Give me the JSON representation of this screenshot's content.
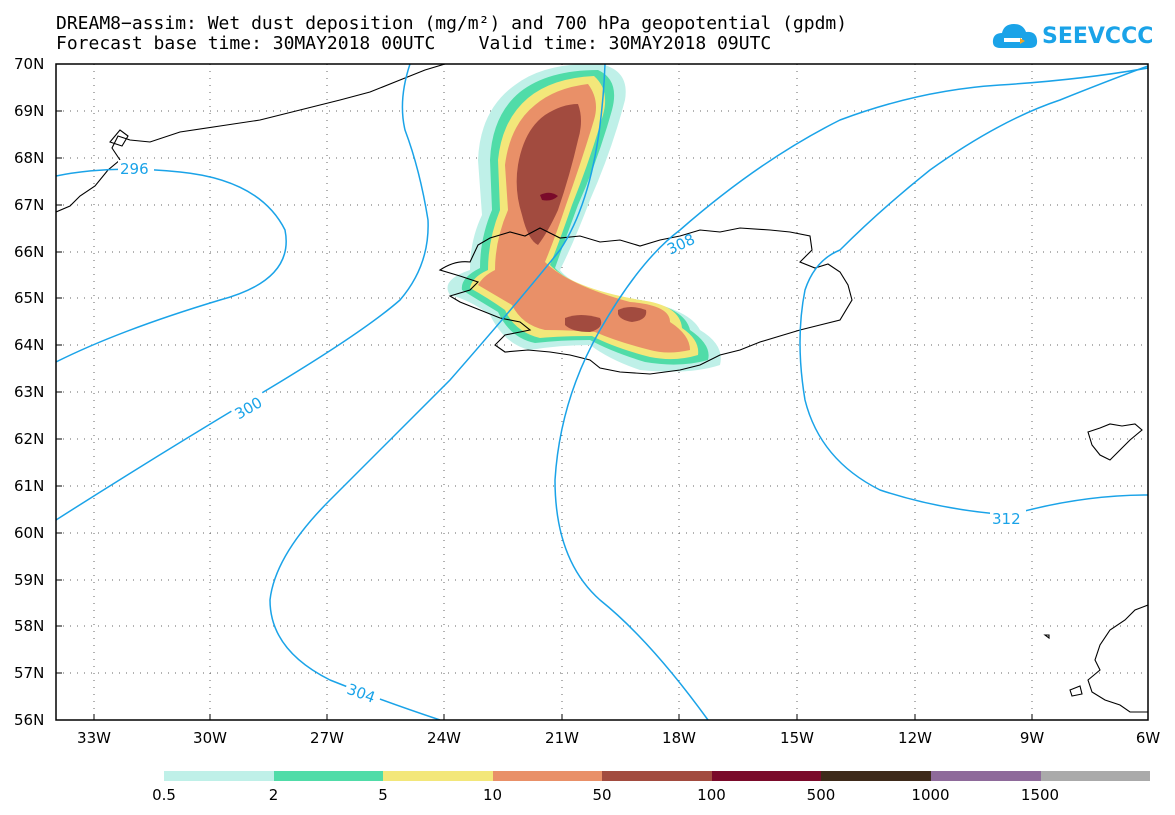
{
  "title_line1": "DREAM8−assim: Wet dust deposition (mg/m²) and 700 hPa geopotential (gpdm)",
  "title_line2": "Forecast base time: 30MAY2018 00UTC    Valid time: 30MAY2018 09UTC",
  "logo_text": "SEEVCCC",
  "lat_labels": [
    "70N",
    "69N",
    "68N",
    "67N",
    "66N",
    "65N",
    "64N",
    "63N",
    "62N",
    "61N",
    "60N",
    "59N",
    "58N",
    "57N",
    "56N"
  ],
  "lon_labels": [
    "33W",
    "30W",
    "27W",
    "24W",
    "21W",
    "18W",
    "15W",
    "12W",
    "9W",
    "6W"
  ],
  "contour_labels": [
    "296",
    "300",
    "304",
    "308",
    "312"
  ],
  "legend": {
    "colors": [
      "#bff0e8",
      "#50dca8",
      "#f3e77a",
      "#e99068",
      "#a24b3f",
      "#7a0a2a",
      "#3e2a1a",
      "#8e6a9a",
      "#aaaaaa"
    ],
    "labels": [
      "0.5",
      "2",
      "5",
      "10",
      "50",
      "100",
      "500",
      "1000",
      "1500"
    ]
  },
  "colors": {
    "contour": "#1aa3e8",
    "coast": "#000000",
    "grid": "#555555"
  }
}
